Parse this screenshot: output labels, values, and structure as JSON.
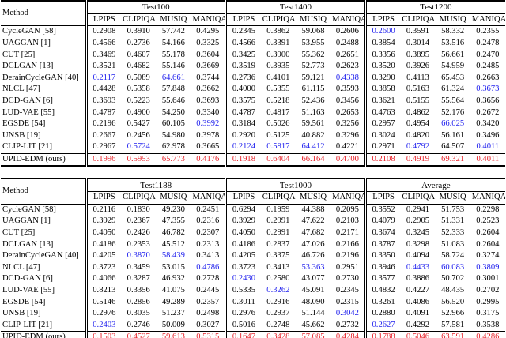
{
  "tables": [
    {
      "method_header": "Method",
      "groups": [
        {
          "title": "Test100",
          "columns": [
            "LPIPS",
            "CLIPIQA",
            "MUSIQ",
            "MANIQA"
          ]
        },
        {
          "title": "Test1400",
          "columns": [
            "LPIPS",
            "CLIPIQA",
            "MUSIQ",
            "MANIQA"
          ]
        },
        {
          "title": "Test1200",
          "columns": [
            "LPIPS",
            "CLIPIQA",
            "MUSIQ",
            "MANIQA"
          ]
        }
      ],
      "rows": [
        {
          "method": "CycleGAN [58]",
          "cells": [
            "0.2908",
            "0.3910",
            "57.742",
            "0.4295",
            "0.2345",
            "0.3862",
            "59.068",
            "0.2606",
            {
              "text": "0.2600",
              "color": "#2222ee"
            },
            "0.3591",
            "58.332",
            "0.2355"
          ]
        },
        {
          "method": "UAGGAN [1]",
          "cells": [
            "0.4566",
            "0.2736",
            "54.166",
            "0.3325",
            "0.4566",
            "0.3391",
            "53.955",
            "0.2488",
            "0.3854",
            "0.3014",
            "53.516",
            "0.2478"
          ]
        },
        {
          "method": "CUT [25]",
          "cells": [
            "0.3469",
            "0.4607",
            "55.178",
            "0.3604",
            "0.3425",
            "0.3900",
            "55.362",
            "0.2651",
            "0.3356",
            "0.3895",
            "56.661",
            "0.2470"
          ]
        },
        {
          "method": "DCLGAN [13]",
          "cells": [
            "0.3521",
            "0.4682",
            "55.146",
            "0.3669",
            "0.3519",
            "0.3935",
            "52.773",
            "0.2623",
            "0.3520",
            "0.3926",
            "54.959",
            "0.2485"
          ]
        },
        {
          "method": "DerainCycleGAN [40]",
          "cells": [
            {
              "text": "0.2117",
              "color": "#2222ee"
            },
            "0.5089",
            {
              "text": "64.661",
              "color": "#2222ee"
            },
            "0.3744",
            "0.2736",
            "0.4101",
            "59.121",
            {
              "text": "0.4338",
              "color": "#2222ee"
            },
            "0.3290",
            "0.4113",
            "65.453",
            "0.2663"
          ]
        },
        {
          "method": "NLCL [47]",
          "cells": [
            "0.4428",
            "0.5358",
            "57.848",
            "0.3662",
            "0.4000",
            "0.5355",
            "61.115",
            "0.3593",
            "0.3858",
            "0.5163",
            "61.324",
            {
              "text": "0.3673",
              "color": "#2222ee"
            }
          ]
        },
        {
          "method": "DCD-GAN [6]",
          "cells": [
            "0.3693",
            "0.5223",
            "55.646",
            "0.3693",
            "0.3575",
            "0.5218",
            "52.436",
            "0.3456",
            "0.3621",
            "0.5155",
            "55.564",
            "0.3656"
          ]
        },
        {
          "method": "LUD-VAE [55]",
          "cells": [
            "0.4787",
            "0.4900",
            "54.250",
            "0.3340",
            "0.4787",
            "0.4817",
            "51.163",
            "0.2653",
            "0.4763",
            "0.4862",
            "52.176",
            "0.2672"
          ]
        },
        {
          "method": "EGSDE [54]",
          "cells": [
            "0.2196",
            "0.5427",
            "60.105",
            {
              "text": "0.3992",
              "color": "#2222ee"
            },
            "0.3184",
            "0.5026",
            "59.561",
            "0.3256",
            "0.2957",
            "0.4954",
            {
              "text": "66.025",
              "color": "#2222ee"
            },
            "0.3420"
          ]
        },
        {
          "method": "UNSB [19]",
          "cells": [
            "0.2667",
            "0.2456",
            "54.980",
            "0.3978",
            "0.2920",
            "0.5125",
            "40.882",
            "0.3296",
            "0.3024",
            "0.4820",
            "56.161",
            "0.3496"
          ]
        },
        {
          "method": "CLIP-LIT [21]",
          "cells": [
            "0.2967",
            {
              "text": "0.5724",
              "color": "#2222ee"
            },
            "62.978",
            "0.3665",
            {
              "text": "0.2124",
              "color": "#2222ee"
            },
            {
              "text": "0.5817",
              "color": "#2222ee"
            },
            {
              "text": "64.412",
              "color": "#2222ee"
            },
            "0.4221",
            "0.2971",
            {
              "text": "0.4792",
              "color": "#2222ee"
            },
            "64.507",
            {
              "text": "0.4011",
              "color": "#2222ee"
            }
          ]
        },
        {
          "method": "UPID-EDM (ours)",
          "bold": true,
          "cells": [
            {
              "text": "0.1996",
              "color": "#e8222a"
            },
            {
              "text": "0.5953",
              "color": "#e8222a"
            },
            {
              "text": "65.773",
              "color": "#e8222a"
            },
            {
              "text": "0.4176",
              "color": "#e8222a"
            },
            {
              "text": "0.1918",
              "color": "#e8222a"
            },
            {
              "text": "0.6404",
              "color": "#e8222a"
            },
            {
              "text": "66.164",
              "color": "#e8222a"
            },
            {
              "text": "0.4700",
              "color": "#e8222a"
            },
            {
              "text": "0.2108",
              "color": "#e8222a"
            },
            {
              "text": "0.4919",
              "color": "#e8222a"
            },
            {
              "text": "69.321",
              "color": "#e8222a"
            },
            {
              "text": "0.4011",
              "color": "#e8222a"
            }
          ]
        }
      ]
    },
    {
      "method_header": "Method",
      "groups": [
        {
          "title": "Test1188",
          "columns": [
            "LPIPS",
            "CLIPIQA",
            "MUSIQ",
            "MANIQA"
          ]
        },
        {
          "title": "Test1000",
          "columns": [
            "LPIPS",
            "CLIPIQA",
            "MUSIQ",
            "MANIQA"
          ]
        },
        {
          "title": "Average",
          "columns": [
            "LPIPS",
            "CLIPIQA",
            "MUSIQ",
            "MANIQA"
          ]
        }
      ],
      "rows": [
        {
          "method": "CycleGAN [58]",
          "cells": [
            "0.2116",
            "0.1830",
            "49.230",
            "0.2451",
            "0.6294",
            "0.1959",
            "44.388",
            "0.2095",
            "0.3552",
            "0.2941",
            "51.753",
            "0.2298"
          ]
        },
        {
          "method": "UAGGAN [1]",
          "cells": [
            "0.3929",
            "0.2367",
            "47.355",
            "0.2316",
            "0.3929",
            "0.2991",
            "47.622",
            "0.2103",
            "0.4079",
            "0.2905",
            "51.331",
            "0.2523"
          ]
        },
        {
          "method": "CUT [25]",
          "cells": [
            "0.4050",
            "0.2426",
            "46.782",
            "0.2307",
            "0.4050",
            "0.2991",
            "47.682",
            "0.2171",
            "0.3674",
            "0.3245",
            "52.333",
            "0.2604"
          ]
        },
        {
          "method": "DCLGAN [13]",
          "cells": [
            "0.4186",
            "0.2353",
            "45.512",
            "0.2313",
            "0.4186",
            "0.2837",
            "47.026",
            "0.2166",
            "0.3787",
            "0.3298",
            "51.083",
            "0.2604"
          ]
        },
        {
          "method": "DerainCycleGAN [40]",
          "cells": [
            "0.4205",
            {
              "text": "0.3870",
              "color": "#2222ee"
            },
            {
              "text": "58.439",
              "color": "#2222ee"
            },
            "0.3413",
            "0.4205",
            "0.3375",
            "46.726",
            "0.2196",
            "0.3350",
            "0.4094",
            "58.724",
            "0.3274"
          ]
        },
        {
          "method": "NLCL [47]",
          "cells": [
            "0.3723",
            "0.3459",
            "53.015",
            {
              "text": "0.4786",
              "color": "#2222ee"
            },
            "0.3723",
            "0.3413",
            {
              "text": "53.363",
              "color": "#2222ee"
            },
            "0.2951",
            "0.3946",
            {
              "text": "0.4433",
              "color": "#2222ee"
            },
            {
              "text": "60.083",
              "color": "#2222ee"
            },
            {
              "text": "0.3809",
              "color": "#2222ee"
            }
          ]
        },
        {
          "method": "DCD-GAN [6]",
          "cells": [
            "0.4066",
            "0.3287",
            "46.932",
            "0.2728",
            {
              "text": "0.2430",
              "color": "#2222ee"
            },
            "0.2580",
            "43.077",
            "0.2730",
            "0.3577",
            "0.3886",
            "50.702",
            "0.3001"
          ]
        },
        {
          "method": "LUD-VAE [55]",
          "cells": [
            "0.8213",
            "0.3356",
            "41.075",
            "0.2445",
            "0.5335",
            {
              "text": "0.3262",
              "color": "#2222ee"
            },
            "45.091",
            "0.2345",
            "0.4832",
            "0.4227",
            "48.435",
            "0.2702"
          ]
        },
        {
          "method": "EGSDE [54]",
          "cells": [
            "0.5146",
            "0.2856",
            "49.289",
            "0.2357",
            "0.3011",
            "0.2916",
            "48.090",
            "0.2315",
            "0.3261",
            "0.4086",
            "56.520",
            "0.2995"
          ]
        },
        {
          "method": "UNSB [19]",
          "cells": [
            "0.2976",
            "0.3035",
            "51.237",
            "0.2498",
            "0.2976",
            "0.2937",
            "51.144",
            {
              "text": "0.3042",
              "color": "#2222ee"
            },
            "0.2880",
            "0.4091",
            "52.966",
            "0.3175"
          ]
        },
        {
          "method": "CLIP-LIT [21]",
          "cells": [
            {
              "text": "0.2403",
              "color": "#2222ee"
            },
            "0.2746",
            "50.009",
            "0.3027",
            "0.5016",
            "0.2748",
            "45.662",
            "0.2732",
            {
              "text": "0.2627",
              "color": "#2222ee"
            },
            "0.4292",
            "57.581",
            "0.3538"
          ]
        },
        {
          "method": "UPID-EDM (ours)",
          "bold": true,
          "cells": [
            {
              "text": "0.1503",
              "color": "#e8222a"
            },
            {
              "text": "0.4527",
              "color": "#e8222a"
            },
            {
              "text": "59.613",
              "color": "#e8222a"
            },
            {
              "text": "0.5315",
              "color": "#e8222a"
            },
            {
              "text": "0.1647",
              "color": "#e8222a"
            },
            {
              "text": "0.3428",
              "color": "#e8222a"
            },
            {
              "text": "57.085",
              "color": "#e8222a"
            },
            {
              "text": "0.4284",
              "color": "#e8222a"
            },
            {
              "text": "0.1788",
              "color": "#e8222a"
            },
            {
              "text": "0.5046",
              "color": "#e8222a"
            },
            {
              "text": "63.591",
              "color": "#e8222a"
            },
            {
              "text": "0.4286",
              "color": "#e8222a"
            }
          ]
        }
      ]
    }
  ]
}
